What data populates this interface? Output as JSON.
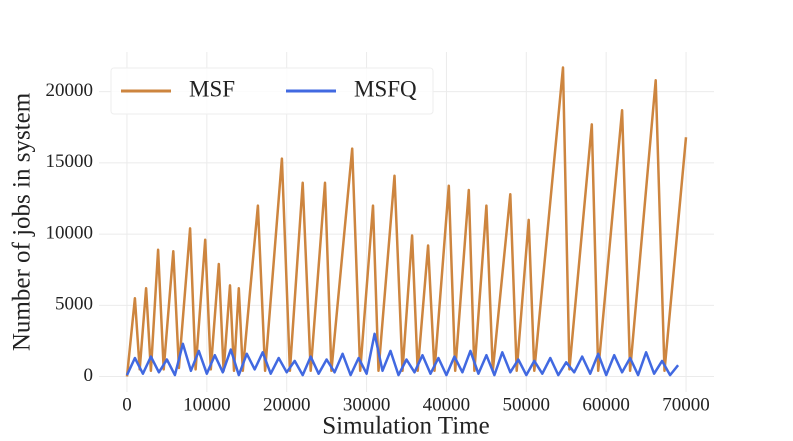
{
  "chart_data": {
    "type": "line",
    "xlabel": "Simulation Time",
    "ylabel": "Number of jobs in system",
    "xlim": [
      -3500,
      73500
    ],
    "ylim": [
      -1085,
      22785
    ],
    "xticks": [
      0,
      10000,
      20000,
      30000,
      40000,
      50000,
      60000,
      70000
    ],
    "yticks": [
      0,
      5000,
      10000,
      15000,
      20000
    ],
    "grid": true,
    "legend": "upper left",
    "series": [
      {
        "name": "MSF",
        "color": "#cd853f",
        "x": [
          0,
          1000,
          1600,
          2400,
          3000,
          3900,
          4600,
          5800,
          6500,
          7900,
          8600,
          9800,
          10500,
          11500,
          12100,
          12900,
          13400,
          14000,
          14500,
          16400,
          17300,
          19400,
          20400,
          22000,
          23000,
          24800,
          25600,
          28200,
          29200,
          30800,
          31500,
          33500,
          34500,
          35700,
          36400,
          37700,
          38500,
          40300,
          41100,
          42800,
          43500,
          45000,
          45800,
          48000,
          48800,
          50300,
          51000,
          54600,
          55400,
          58200,
          59000,
          62000,
          63000,
          66200,
          67300,
          70000
        ],
        "values": [
          0,
          5500,
          500,
          6200,
          400,
          8900,
          500,
          8800,
          600,
          10400,
          500,
          9600,
          500,
          7900,
          400,
          6400,
          400,
          6200,
          400,
          12000,
          400,
          15300,
          400,
          13600,
          400,
          13600,
          400,
          16000,
          400,
          12000,
          400,
          14100,
          400,
          9900,
          400,
          9200,
          400,
          13400,
          400,
          13100,
          400,
          12000,
          400,
          12800,
          400,
          11000,
          400,
          21700,
          500,
          17700,
          400,
          18700,
          400,
          20800,
          400,
          16800
        ]
      },
      {
        "name": "MSFQ",
        "color": "#4169e1",
        "x": [
          0,
          1000,
          2000,
          3000,
          4000,
          5000,
          6000,
          7000,
          8000,
          9000,
          10000,
          11000,
          12000,
          13000,
          14000,
          15000,
          16000,
          17000,
          18000,
          19000,
          20000,
          21000,
          22000,
          23000,
          24000,
          25000,
          26000,
          27000,
          28000,
          29000,
          30000,
          31000,
          32000,
          33000,
          34000,
          35000,
          36000,
          37000,
          38000,
          39000,
          40000,
          41000,
          42000,
          43000,
          44000,
          45000,
          46000,
          47000,
          48000,
          49000,
          50000,
          51000,
          52000,
          53000,
          54000,
          55000,
          56000,
          57000,
          58000,
          59000,
          60000,
          61000,
          62000,
          63000,
          64000,
          65000,
          66000,
          67000,
          68000,
          69000
        ],
        "values": [
          100,
          1300,
          200,
          1400,
          300,
          1200,
          100,
          2300,
          400,
          1800,
          200,
          1500,
          300,
          1900,
          100,
          1600,
          500,
          1700,
          200,
          1300,
          300,
          1100,
          100,
          1400,
          200,
          1200,
          300,
          1600,
          100,
          1300,
          200,
          3000,
          400,
          1800,
          100,
          1200,
          300,
          1500,
          200,
          1300,
          100,
          1400,
          300,
          1800,
          200,
          1500,
          100,
          1700,
          300,
          1200,
          100,
          1100,
          200,
          1300,
          100,
          1000,
          300,
          1400,
          200,
          1600,
          100,
          1500,
          300,
          1300,
          100,
          1700,
          200,
          1100,
          100,
          800
        ]
      }
    ]
  }
}
